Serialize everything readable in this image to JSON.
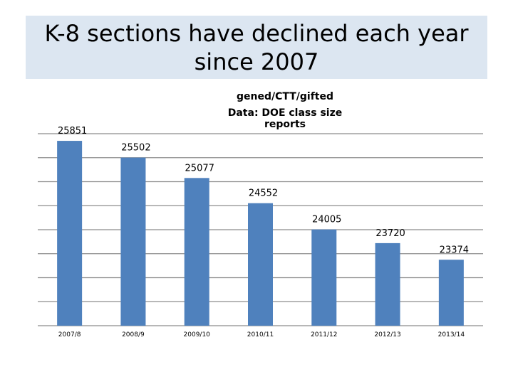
{
  "slide": {
    "title": "K-8 sections have declined each year\nsince 2007"
  },
  "chart_data": {
    "type": "bar",
    "title": "gened/CTT/gifted",
    "subtitle": "Data: DOE class size reports",
    "categories": [
      "2007/8",
      "2008/9",
      "2009/10",
      "2010/11",
      "2011/12",
      "2012/13",
      "2013/14"
    ],
    "values": [
      25851,
      25502,
      25077,
      24552,
      24005,
      23720,
      23374
    ],
    "data_labels": [
      "25851",
      "25502",
      "25077",
      "24552",
      "24005",
      "23720",
      "23374"
    ],
    "ylim": [
      22000,
      26000
    ],
    "grid": true,
    "legend": "none",
    "xlabel": "",
    "ylabel": "",
    "colors": {
      "bar": "#4f81bd",
      "grid": "#8c8c8c",
      "title_bg": "#dce6f1"
    }
  }
}
